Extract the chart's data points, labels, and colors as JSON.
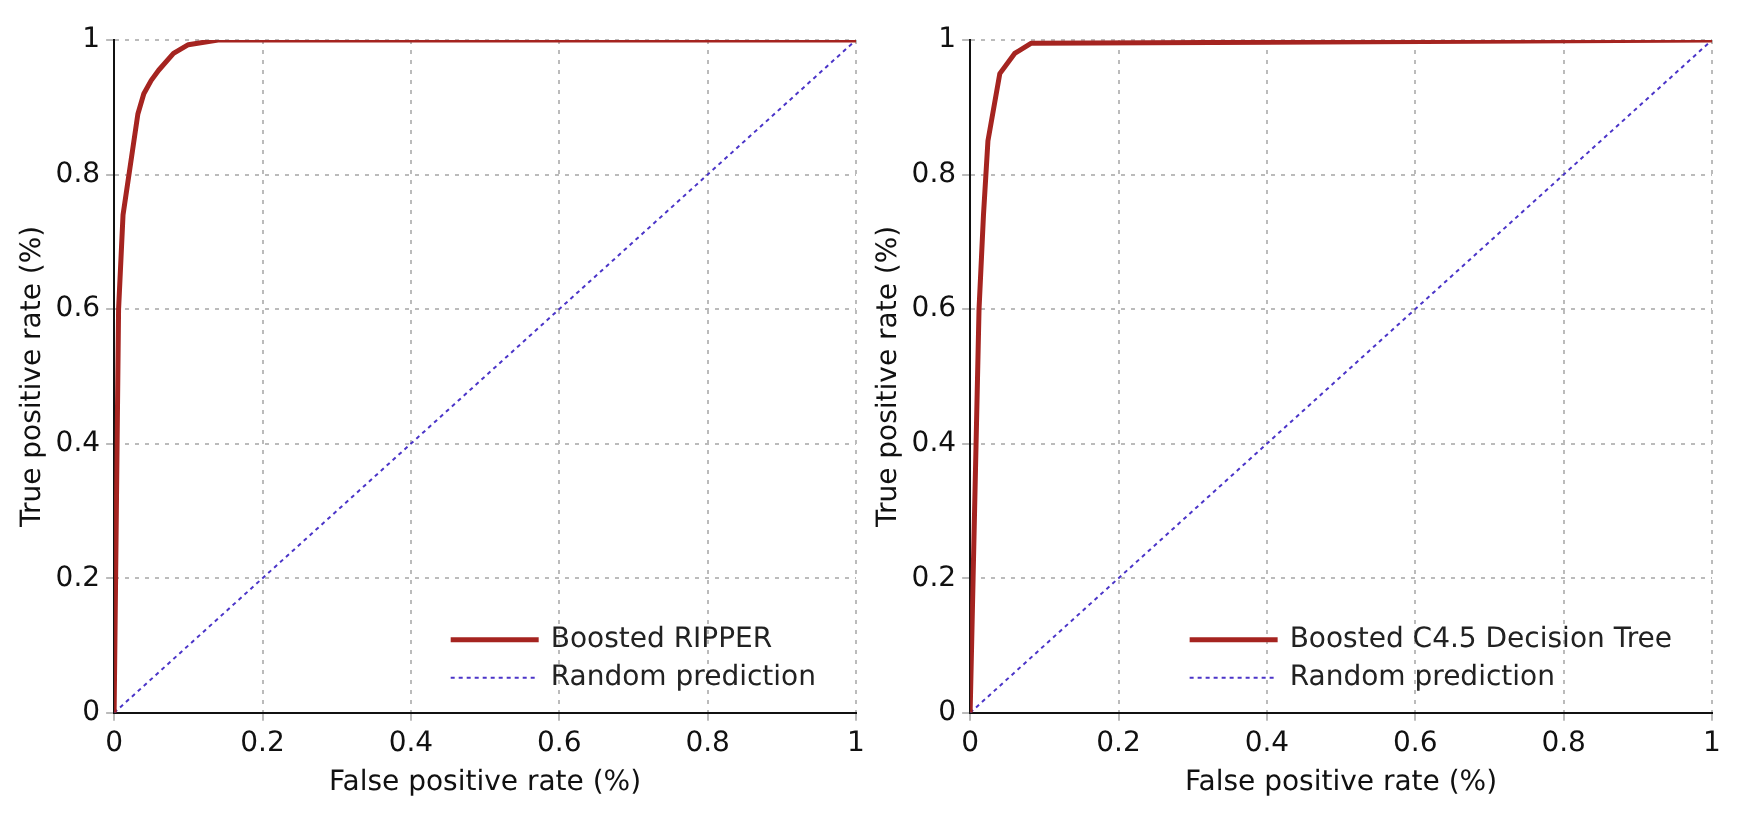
{
  "chart_data": [
    {
      "type": "line",
      "xlabel": "False positive rate (%)",
      "ylabel": "True positive rate (%)",
      "xlim": [
        0,
        1
      ],
      "ylim": [
        0,
        1
      ],
      "xticks": [
        0,
        0.2,
        0.4,
        0.6,
        0.8,
        1
      ],
      "yticks": [
        0,
        0.2,
        0.4,
        0.6,
        0.8,
        1
      ],
      "grid": true,
      "legend": "bottom right",
      "marker": "none",
      "series": [
        {
          "name": "Boosted RIPPER",
          "color": "#a52420",
          "line_style": "solid",
          "x": [
            0,
            0.003,
            0.006,
            0.012,
            0.02,
            0.032,
            0.04,
            0.05,
            0.06,
            0.08,
            0.1,
            0.14,
            1
          ],
          "values": [
            0,
            0.3,
            0.6,
            0.74,
            0.8,
            0.89,
            0.92,
            0.94,
            0.955,
            0.98,
            0.993,
            1,
            1
          ]
        },
        {
          "name": "Random prediction",
          "color": "#4b35c8",
          "line_style": "dotted",
          "x": [
            0,
            1
          ],
          "values": [
            0,
            1
          ]
        }
      ]
    },
    {
      "type": "line",
      "xlabel": "False positive rate (%)",
      "ylabel": "True positive rate (%)",
      "xlim": [
        0,
        1
      ],
      "ylim": [
        0,
        1
      ],
      "xticks": [
        0,
        0.2,
        0.4,
        0.6,
        0.8,
        1
      ],
      "yticks": [
        0,
        0.2,
        0.4,
        0.6,
        0.8,
        1
      ],
      "grid": true,
      "legend": "bottom right",
      "marker": "none",
      "series": [
        {
          "name": "Boosted C4.5 Decision Tree",
          "color": "#a52420",
          "line_style": "solid",
          "x": [
            0,
            0.004,
            0.012,
            0.018,
            0.024,
            0.04,
            0.06,
            0.082,
            1
          ],
          "values": [
            0,
            0.2,
            0.6,
            0.74,
            0.85,
            0.95,
            0.98,
            0.995,
            1
          ]
        },
        {
          "name": "Random prediction",
          "color": "#4b35c8",
          "line_style": "dotted",
          "x": [
            0,
            1
          ],
          "values": [
            0,
            1
          ]
        }
      ]
    }
  ]
}
